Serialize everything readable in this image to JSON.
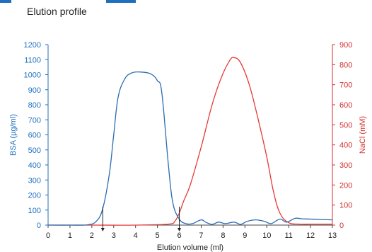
{
  "chart_data": {
    "type": "line",
    "title": "Elution profile",
    "xlabel": "Elution volume (ml)",
    "ylabel_left": "BSA (µg/ml)",
    "ylabel_right": "NaCl (mM)",
    "xlim": [
      0,
      13
    ],
    "ylim_left": [
      0,
      1200
    ],
    "ylim_right": [
      0,
      900
    ],
    "grid": false,
    "legend": "none",
    "x_ticks": [
      "0",
      "1",
      "2",
      "3",
      "4",
      "5",
      "6",
      "7",
      "8",
      "9",
      "10",
      "11",
      "12",
      "13"
    ],
    "y_ticks_left": [
      "0",
      "100",
      "200",
      "300",
      "400",
      "500",
      "600",
      "700",
      "800",
      "900",
      "1000",
      "1100",
      "1200"
    ],
    "y_ticks_right": [
      "0",
      "100",
      "200",
      "300",
      "400",
      "500",
      "600",
      "700",
      "800",
      "900"
    ],
    "markers": [
      2.5,
      6.0
    ],
    "colors": {
      "bsa": "#2b6cb0",
      "nacl": "#e53935",
      "axis_text": "#1f6fbf",
      "right_axis": "#d32f2f",
      "baseline": "#444444"
    },
    "series": [
      {
        "name": "BSA (µg/ml)",
        "axis": "left",
        "x": [
          0,
          1,
          1.8,
          2.2,
          2.5,
          2.8,
          3.0,
          3.2,
          3.5,
          3.8,
          4.2,
          4.7,
          5.0,
          5.2,
          5.5,
          5.7,
          6.0,
          6.3,
          6.6,
          7.0,
          7.2,
          7.5,
          7.8,
          8.1,
          8.5,
          8.8,
          9.1,
          9.5,
          9.9,
          10.2,
          10.6,
          10.9,
          11.3,
          11.6,
          12.0,
          12.5,
          13.0
        ],
        "y": [
          0,
          0,
          2,
          25,
          110,
          340,
          600,
          850,
          970,
          1010,
          1018,
          1005,
          960,
          880,
          400,
          150,
          40,
          10,
          10,
          35,
          20,
          5,
          20,
          10,
          20,
          5,
          25,
          35,
          25,
          10,
          40,
          20,
          45,
          42,
          40,
          37,
          35
        ]
      },
      {
        "name": "NaCl (mM)",
        "axis": "right",
        "x": [
          0,
          2,
          4,
          5.5,
          5.8,
          6.0,
          6.2,
          6.5,
          7.0,
          7.5,
          7.9,
          8.3,
          8.5,
          8.8,
          9.2,
          9.6,
          10.0,
          10.3,
          10.6,
          11.0,
          11.5,
          12.0,
          13.0
        ],
        "y": [
          0,
          0,
          0,
          5,
          20,
          60,
          120,
          200,
          390,
          600,
          730,
          820,
          835,
          810,
          700,
          530,
          340,
          170,
          60,
          12,
          5,
          5,
          5
        ]
      }
    ]
  }
}
